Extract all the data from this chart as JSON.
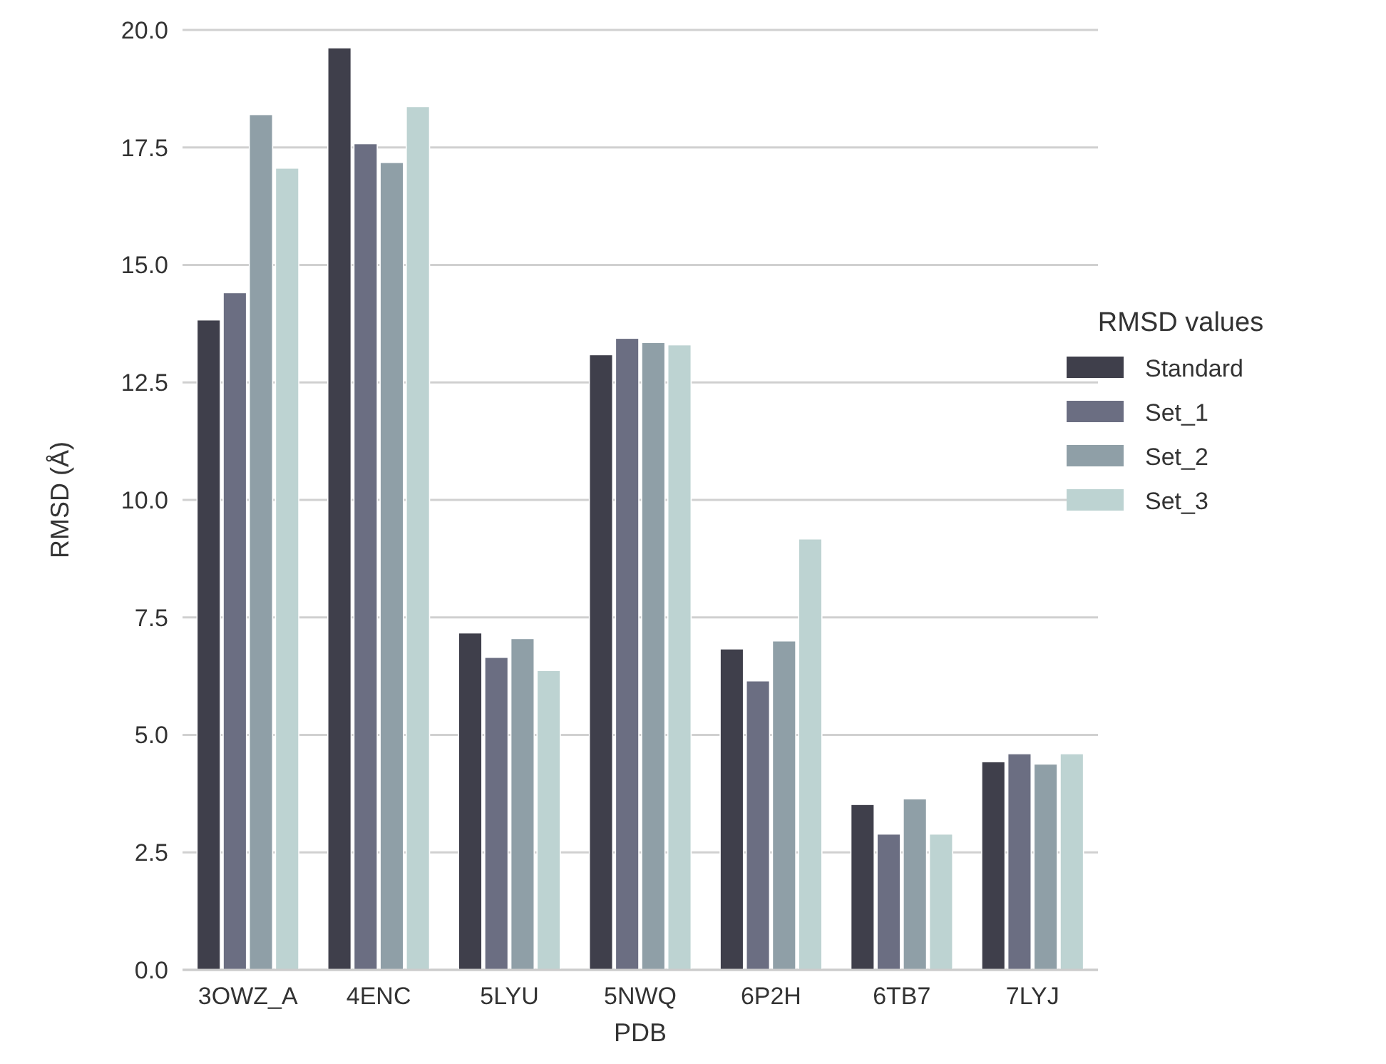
{
  "chart_data": {
    "type": "bar",
    "xlabel": "PDB",
    "ylabel": "RMSD (Å)",
    "legend_title": "RMSD values",
    "legend": "right",
    "categories": [
      "3OWZ_A",
      "4ENC",
      "5LYU",
      "5NWQ",
      "6P2H",
      "6TB7",
      "7LYJ"
    ],
    "series": [
      {
        "name": "Standard",
        "color": "#3f3f4b",
        "values": [
          13.83,
          19.62,
          7.17,
          13.09,
          6.83,
          3.52,
          4.43
        ]
      },
      {
        "name": "Set_1",
        "color": "#6b6e82",
        "values": [
          14.41,
          17.58,
          6.65,
          13.44,
          6.15,
          2.89,
          4.6
        ]
      },
      {
        "name": "Set_2",
        "color": "#8f9fa7",
        "values": [
          18.2,
          17.18,
          7.05,
          13.35,
          7.0,
          3.64,
          4.38
        ]
      },
      {
        "name": "Set_3",
        "color": "#bdd3d2",
        "values": [
          17.06,
          18.37,
          6.37,
          13.3,
          9.17,
          2.89,
          4.6
        ]
      }
    ],
    "ylim": [
      0,
      20
    ],
    "yticks": [
      {
        "value": 0,
        "label": "0.0"
      },
      {
        "value": 2.5,
        "label": "2.5"
      },
      {
        "value": 5,
        "label": "5.0"
      },
      {
        "value": 7.5,
        "label": "7.5"
      },
      {
        "value": 10,
        "label": "10.0"
      },
      {
        "value": 12.5,
        "label": "12.5"
      },
      {
        "value": 15,
        "label": "15.0"
      },
      {
        "value": 17.5,
        "label": "17.5"
      },
      {
        "value": 20,
        "label": "20.0"
      }
    ],
    "grid": "y"
  }
}
